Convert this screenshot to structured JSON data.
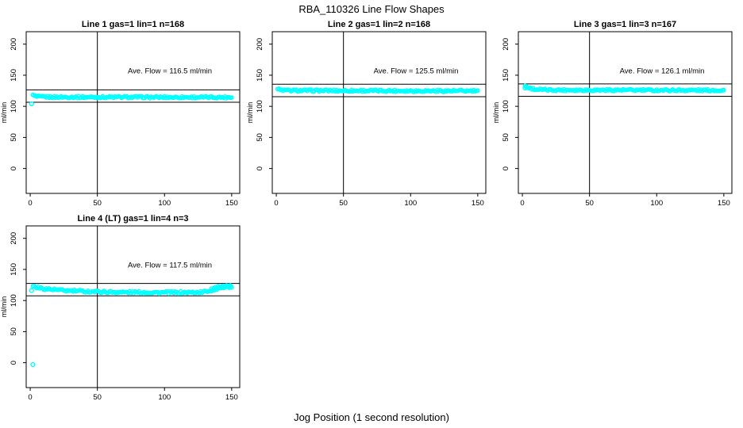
{
  "title": "RBA_110326  Line Flow Shapes",
  "xlabel": "Jog Position (1 second resolution)",
  "chart_data": {
    "type": "scatter",
    "title": "RBA_110326  Line Flow Shapes",
    "xlabel": "Jog Position (1 second resolution)",
    "ylabel": "ml/min",
    "point_color": "#00ffff",
    "line_color": "#000000",
    "x_ticks": [
      0,
      50,
      100,
      150
    ],
    "y_ticks": [
      0,
      50,
      100,
      150,
      200
    ],
    "xlim": [
      -3,
      156
    ],
    "ylim": [
      -40,
      220
    ],
    "vline_x": 50,
    "grid": false,
    "legend": "none",
    "panels": [
      {
        "title": "Line 1 gas=1 lin=1 n=168",
        "ave_label": "Ave. Flow =  116.5  ml/min",
        "ave_flow": 116.5,
        "n": 168,
        "hlines": [
          126.5,
          106.5
        ],
        "profile": [
          [
            2,
            117.5
          ],
          [
            5,
            115.5
          ],
          [
            15,
            114.9
          ],
          [
            150,
            114.5
          ]
        ],
        "outliers": [
          [
            1,
            104
          ]
        ],
        "extra_points": [],
        "x_start": 2,
        "x_end": 150,
        "jitter": 1.5,
        "label_pos": [
          104,
          153
        ]
      },
      {
        "title": "Line 2 gas=1 lin=2 n=168",
        "ave_label": "Ave. Flow =  125.5  ml/min",
        "ave_flow": 125.5,
        "n": 168,
        "hlines": [
          135.5,
          115.5
        ],
        "profile": [
          [
            1,
            128
          ],
          [
            3,
            126.2
          ],
          [
            10,
            125.4
          ],
          [
            150,
            124.7
          ]
        ],
        "outliers": [],
        "extra_points": [],
        "x_start": 1,
        "x_end": 150,
        "jitter": 1.6,
        "label_pos": [
          104,
          153
        ]
      },
      {
        "title": "Line 3 gas=1 lin=3 n=167",
        "ave_label": "Ave. Flow =  126.1  ml/min",
        "ave_flow": 126.1,
        "n": 167,
        "hlines": [
          136.1,
          116.1
        ],
        "profile": [
          [
            2,
            133
          ],
          [
            5,
            129.5
          ],
          [
            10,
            127.2
          ],
          [
            20,
            126.3
          ],
          [
            150,
            125.8
          ]
        ],
        "outliers": [
          [
            2,
            129.5
          ],
          [
            3,
            131
          ]
        ],
        "extra_points": [],
        "x_start": 2,
        "x_end": 150,
        "jitter": 1.5,
        "label_pos": [
          104,
          153
        ]
      },
      {
        "title": "Line 4 (LT) gas=1 lin=4 n=3",
        "ave_label": "Ave. Flow =  117.5  ml/min",
        "ave_flow": 117.5,
        "n": 3,
        "hlines": [
          127.5,
          107.5
        ],
        "profile": [
          [
            2,
            123
          ],
          [
            8,
            119.5
          ],
          [
            25,
            116
          ],
          [
            60,
            113.5
          ],
          [
            105,
            112.8
          ],
          [
            128,
            113.2
          ],
          [
            136,
            117
          ],
          [
            143,
            121.5
          ],
          [
            150,
            122.5
          ]
        ],
        "outliers": [
          [
            1,
            116
          ],
          [
            2,
            -3
          ]
        ],
        "extra_points": [
          [
            135,
            119
          ],
          [
            137,
            120.5
          ],
          [
            138,
            121.5
          ],
          [
            140,
            123
          ],
          [
            141,
            122
          ],
          [
            142,
            120
          ],
          [
            144,
            123.5
          ],
          [
            145,
            121
          ],
          [
            146,
            124
          ],
          [
            147,
            123
          ],
          [
            148,
            120.5
          ],
          [
            149,
            123
          ],
          [
            150,
            121
          ]
        ],
        "x_start": 2,
        "x_end": 150,
        "jitter": 1.8,
        "label_pos": [
          104,
          153
        ]
      }
    ]
  }
}
